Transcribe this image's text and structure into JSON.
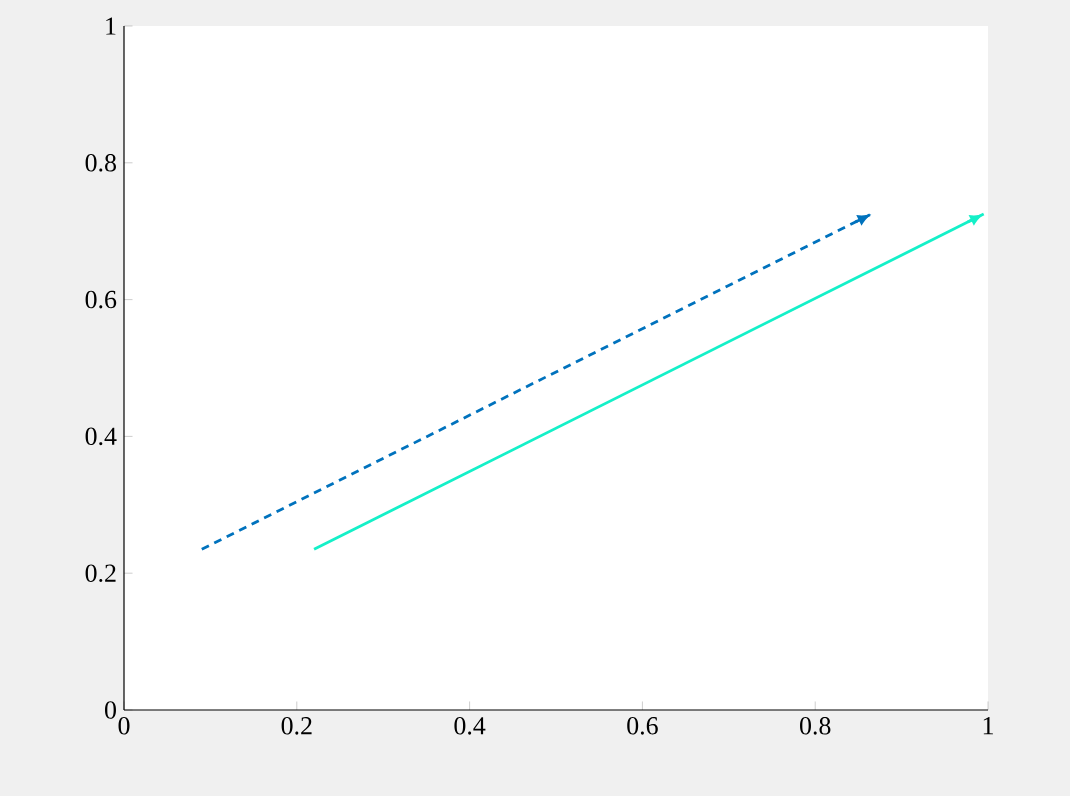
{
  "chart_data": {
    "type": "line",
    "xlim": [
      0,
      1
    ],
    "ylim": [
      0,
      1
    ],
    "xticks": [
      0,
      0.2,
      0.4,
      0.6,
      0.8,
      1
    ],
    "yticks": [
      0,
      0.2,
      0.4,
      0.6,
      0.8,
      1
    ],
    "marker": "none",
    "series": [
      {
        "color": "#0072bd",
        "line_style": "dashed",
        "x": [
          0.09,
          0.865
        ],
        "values": [
          0.235,
          0.725
        ]
      },
      {
        "color": "#14f0c8",
        "line_style": "solid",
        "x": [
          0.22,
          0.995
        ],
        "values": [
          0.235,
          0.725
        ]
      }
    ]
  }
}
